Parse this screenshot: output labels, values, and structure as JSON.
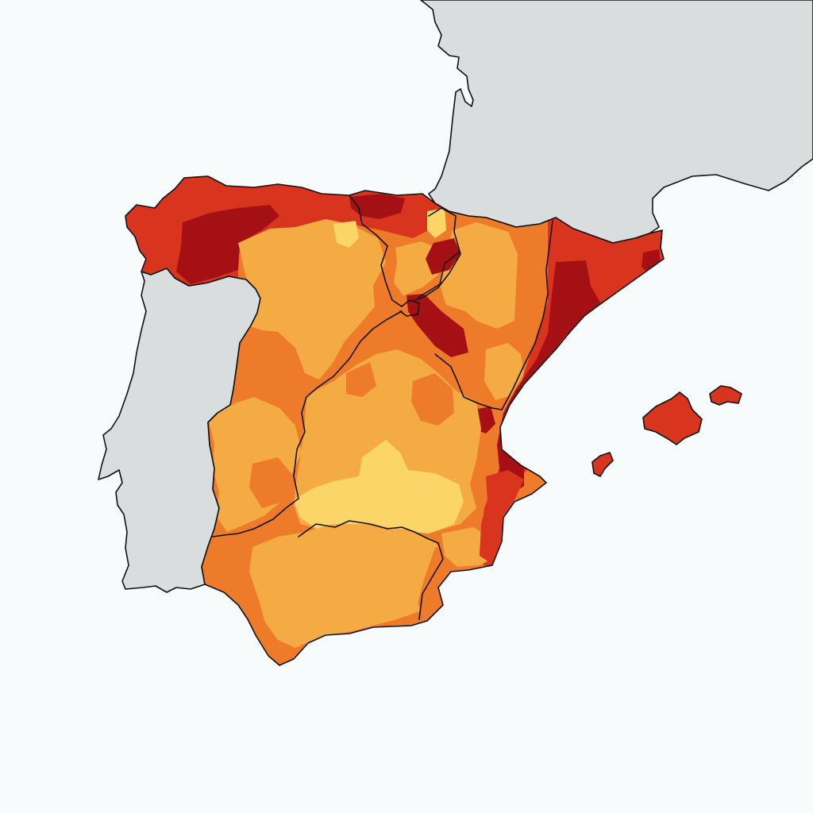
{
  "map": {
    "type": "choropleth",
    "colors": {
      "sea": "#f8fbfc",
      "neighbor_land": "#d9dddd",
      "class_1": "#fcd568",
      "class_2": "#f4ab43",
      "class_3": "#ee7b2a",
      "class_4": "#d9341d",
      "class_5": "#a41014",
      "border": "#111111"
    },
    "regions": [
      {
        "id": "spain-mainland"
      },
      {
        "id": "portugal"
      },
      {
        "id": "france"
      },
      {
        "id": "mallorca"
      },
      {
        "id": "menorca"
      },
      {
        "id": "ibiza"
      }
    ]
  }
}
